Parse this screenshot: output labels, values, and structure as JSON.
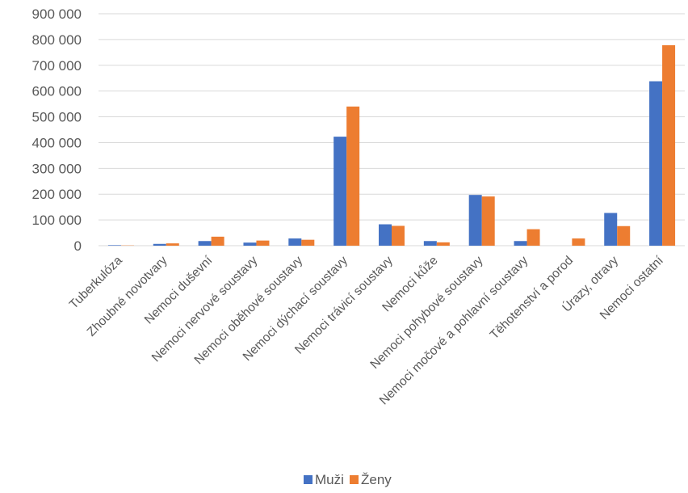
{
  "chart_data": {
    "type": "bar",
    "title": "",
    "xlabel": "",
    "ylabel": "",
    "ylim": [
      0,
      900000
    ],
    "y_ticks": [
      0,
      100000,
      200000,
      300000,
      400000,
      500000,
      600000,
      700000,
      800000,
      900000
    ],
    "y_tick_labels": [
      "0",
      "100 000",
      "200 000",
      "300 000",
      "400 000",
      "500 000",
      "600 000",
      "700 000",
      "800 000",
      "900 000"
    ],
    "grid": true,
    "legend_position": "bottom",
    "categories": [
      "Tuberkulóza",
      "Zhoubné novotvary",
      "Nemoci duševní",
      "Nemoci nervové soustavy",
      "Nemoci oběhové soustavy",
      "Nemoci dýchací soustavy",
      "Nemoci trávicí soustavy",
      "Nemoci kůže",
      "Nemoci pohybové soustavy",
      "Nemoci močové a pohlavní soustavy",
      "Těhotenství a porod",
      "Úrazy, otravy",
      "Nemoci ostatní"
    ],
    "series": [
      {
        "name": "Muži",
        "color": "#4472c4",
        "values": [
          2000,
          7000,
          18000,
          12000,
          28000,
          423000,
          83000,
          18000,
          197000,
          18000,
          0,
          127000,
          638000
        ]
      },
      {
        "name": "Ženy",
        "color": "#ed7d31",
        "values": [
          1000,
          9000,
          35000,
          20000,
          23000,
          540000,
          77000,
          13000,
          191000,
          64000,
          28000,
          76000,
          778000
        ]
      }
    ]
  }
}
